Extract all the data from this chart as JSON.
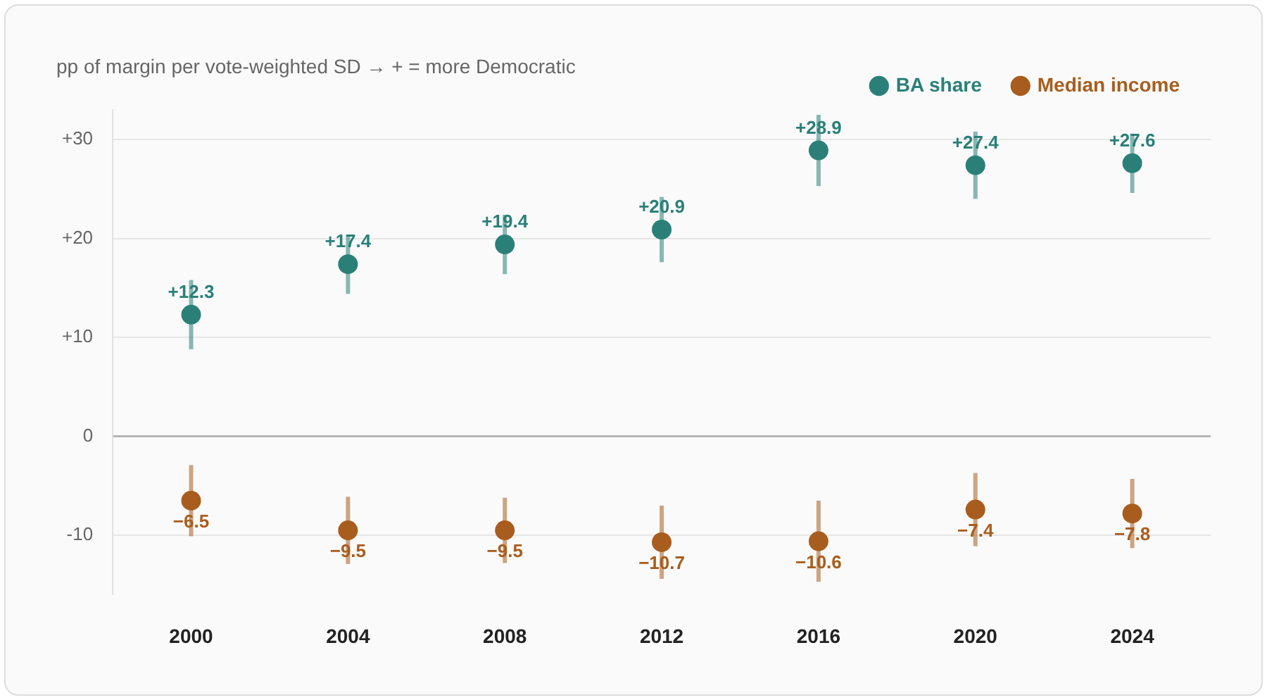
{
  "chart_data": {
    "type": "scatter",
    "ylabel": "pp of margin per vote-weighted SD → + = more Democratic",
    "categories": [
      "2000",
      "2004",
      "2008",
      "2012",
      "2016",
      "2020",
      "2024"
    ],
    "series": [
      {
        "name": "BA share",
        "color": "#2a8078",
        "values": [
          12.3,
          17.4,
          19.4,
          20.9,
          28.9,
          27.4,
          27.6
        ],
        "errors": [
          3.5,
          3,
          3,
          3.3,
          3.6,
          3.4,
          3
        ],
        "value_labels": [
          "+12.3",
          "+17.4",
          "+19.4",
          "+20.9",
          "+28.9",
          "+27.4",
          "+27.6"
        ]
      },
      {
        "name": "Median income",
        "color": "#a85d1e",
        "values": [
          -6.5,
          -9.5,
          -9.5,
          -10.7,
          -10.6,
          -7.4,
          -7.8
        ],
        "errors": [
          3.6,
          3.4,
          3.3,
          3.7,
          4.1,
          3.7,
          3.5
        ],
        "value_labels": [
          "−6.5",
          "−9.5",
          "−9.5",
          "−10.7",
          "−10.6",
          "−7.4",
          "−7.8"
        ]
      }
    ],
    "yticks": [
      {
        "value": 30,
        "label": "+30"
      },
      {
        "value": 20,
        "label": "+20"
      },
      {
        "value": 10,
        "label": "+10"
      },
      0,
      {
        "value": -10,
        "label": "-10"
      }
    ],
    "ylim": [
      -16,
      33
    ],
    "grid": "y",
    "legend": "top right",
    "marker": "circle"
  }
}
